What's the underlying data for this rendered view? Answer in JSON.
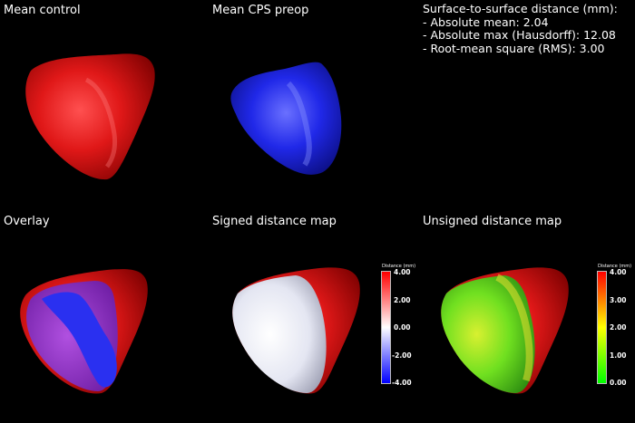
{
  "panels": {
    "mean_control": {
      "title": "Mean control",
      "color": "#d81414"
    },
    "mean_cps": {
      "title": "Mean CPS preop",
      "color": "#1a22e0"
    },
    "overlay": {
      "title": "Overlay"
    },
    "signed": {
      "title": "Signed distance map"
    },
    "unsigned": {
      "title": "Unsigned distance map"
    }
  },
  "stats": {
    "heading": "Surface-to-surface distance (mm):",
    "lines": [
      "- Absolute mean: 2.04",
      "- Absolute max (Hausdorff): 12.08",
      "- Root-mean square (RMS): 3.00"
    ]
  },
  "signed_colorbar": {
    "title": "Distance (mm)",
    "ticks": [
      "4.00",
      "2.00",
      "0.00",
      "-2.00",
      "-4.00"
    ],
    "colors": [
      "#ff0000",
      "#ffffff",
      "#0000ff"
    ]
  },
  "unsigned_colorbar": {
    "title": "Distance (mm)",
    "ticks": [
      "4.00",
      "3.00",
      "2.00",
      "1.00",
      "0.00"
    ],
    "colors": [
      "#ff0000",
      "#ffff00",
      "#00ff00"
    ]
  }
}
